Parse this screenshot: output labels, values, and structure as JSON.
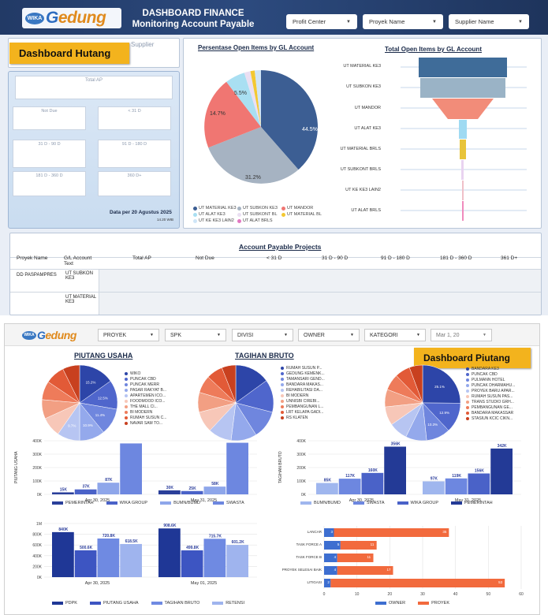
{
  "header": {
    "title_line1": "DASHBOARD FINANCE",
    "title_line2": "Monitoring Account Payable",
    "logo_wika": "WIKA",
    "logo_g": "G",
    "logo_text": "edung",
    "filters": [
      {
        "label": "Profit Center"
      },
      {
        "label": "Proyek Name"
      },
      {
        "label": "Supplier Name"
      }
    ]
  },
  "hutang": {
    "tag": "Dashboard Hutang",
    "supplier_label": "Supplier",
    "total_ap_label": "Total AP",
    "kpis": [
      "Not Due",
      "< 31 D",
      "31 D - 90 D",
      "91 D - 180 D",
      "181 D - 360 D",
      "360 D+"
    ],
    "date_note": "Data per 20 Agustus 2025",
    "time_note": "14.20 WIB"
  },
  "pie_chart": {
    "title": "Persentase Open Items by GL Account",
    "labels": [
      "44.5%",
      "31.2%",
      "14.7%",
      "5.5%"
    ],
    "legend": [
      "UT MATERIAL KE3",
      "UT SUBKON KE3",
      "UT MANDOR",
      "UT ALAT KE3",
      "UT SUBKONT BL",
      "UT MATERIAL BL",
      "UT KE KE3 LAIN2",
      "UT ALAT BRLS"
    ]
  },
  "funnel_chart": {
    "title": "Total Open Items by GL Account",
    "rows": [
      "UT MATERIAL KE3",
      "UT SUBKON KE3",
      "UT MANDOR",
      "UT ALAT KE3",
      "UT MATERIAL BRLS",
      "UT SUBKONT BRLS",
      "UT KE KE3 LAIN2",
      "UT ALAT BRLS"
    ]
  },
  "ap_table": {
    "title": "Account Payable Projects",
    "columns": [
      "Proyek Name",
      "G/L Account Text",
      "Total AP",
      "Not Due",
      "< 31 D",
      "31 D - 90 D",
      "91 D - 180 D",
      "181 D - 360 D",
      "361 D+"
    ],
    "project": "DD PASPAMPRES",
    "accounts": [
      "UT SUBKON KE3",
      "UT MATERIAL KE3"
    ]
  },
  "piutang": {
    "tag": "Dashboard Piutang",
    "filters": [
      "PROYEK",
      "SPK",
      "DIVISI",
      "OWNER",
      "KATEGORI",
      "Mar 1, 20"
    ],
    "pie1_title": "PIUTANG USAHA",
    "pie2_title": "TAGIHAN BRUTO",
    "pie1_legend": [
      "WIKO",
      "PUNCAK CBD",
      "PUNCAK MERR",
      "PASAR RAKYAT B...",
      "APARTEMEN ICO...",
      "FOODMOOD ICO...",
      "THE MALL CI...",
      "BI MODERN",
      "RUMAH SUSUN C...",
      "NAVAR SAM TO..."
    ],
    "pie2_legend": [
      "RUMAH SUSUN P...",
      "GEDUNG KEMENK...",
      "TAMANSARI GEND...",
      "BANDARA MAKAS...",
      "REHABILITASI DA...",
      "BI MODERN",
      "UNNISBI CIREBI...",
      "PEMBANGUNAN L...",
      "LRT KELAPA GADI...",
      "RS KLATEN"
    ],
    "pie3_legend": [
      "BANDARA KE3",
      "PUNCAK CBD",
      "PULMANN HOTEL",
      "PUNCAK DHARMAHU...",
      "PROYEK BARU APAR...",
      "RUMAH SUSUN PAS...",
      "TRANS STUDIO GRH...",
      "PEMBANGUNAN GE...",
      "BANDARA MAKASSAR",
      "STASIUN KCIC CIKN..."
    ],
    "pie1_labels": [
      "15.2%",
      "12.5%",
      "11.4%",
      "10.9%",
      "9.7%"
    ],
    "pie3_labels": [
      "25.1%",
      "12.9%",
      "10.3%"
    ],
    "bar1": {
      "ylabel": "PIUTANG USAHA",
      "yticks": [
        "400K",
        "300K",
        "200K",
        "100K",
        "0K"
      ],
      "dates": [
        "Apr 30, 2025",
        "May 31, 2025"
      ],
      "labels": [
        "15K",
        "37K",
        "87K",
        "30K",
        "25K",
        "58K"
      ],
      "legend": [
        "PEMERINTAH",
        "WIKA GROUP",
        "BUMN/BUMD",
        "SWASTA"
      ]
    },
    "bar2": {
      "ylabel": "TAGIHAN BRUTO",
      "yticks": [
        "400K",
        "300K",
        "200K",
        "100K",
        "0K"
      ],
      "dates": [
        "Apr 30, 2025",
        "May 31, 2025"
      ],
      "labels": [
        "85K",
        "117K",
        "160K",
        "356K",
        "97K",
        "119K",
        "156K",
        "342K"
      ],
      "legend": [
        "BUMN/BUMD",
        "SWASTA",
        "WIKA GROUP",
        "PEMERINTAH"
      ]
    },
    "bar3": {
      "yticks": [
        "1M",
        "800K",
        "600K",
        "400K",
        "200K",
        "0K"
      ],
      "dates": [
        "Apr 30, 2025",
        "May 01, 2025"
      ],
      "labels": [
        "840K",
        "500.6K",
        "720.8K",
        "618.5K",
        "908.6K",
        "499.8K",
        "715.7K",
        "601.2K"
      ],
      "legend": [
        "PDPK",
        "PIUTANG USAHA",
        "TAGIHAN BRUTO",
        "RETENSI"
      ]
    },
    "hbar": {
      "categories": [
        "LANCAR",
        "TASK FORCE A",
        "TASK FORCE B",
        "PROYEK SELESAI BAIK",
        "LITIGASI"
      ],
      "owner_labels": [
        "3",
        "5",
        "4",
        "4",
        "2"
      ],
      "proyek_labels": [
        "35",
        "11",
        "11",
        "17",
        "53"
      ],
      "xticks": [
        "0",
        "10",
        "20",
        "30",
        "40",
        "50",
        "60"
      ],
      "legend": [
        "OWNER",
        "PROYEK"
      ]
    }
  },
  "colors": {
    "navy": "#223a66",
    "accent": "#f3b31d",
    "blue1": "#2f55a8",
    "orange": "#f26a3d"
  }
}
